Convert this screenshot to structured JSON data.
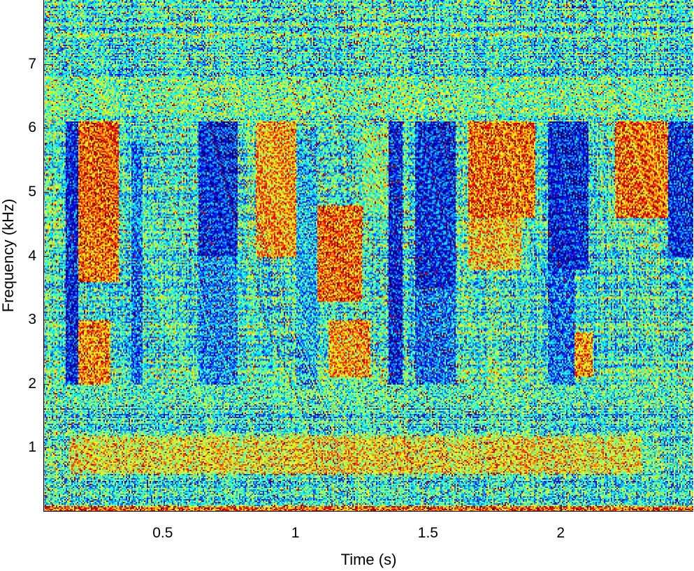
{
  "chart_data": {
    "type": "heatmap",
    "title": "",
    "xlabel": "Time (s)",
    "ylabel": "Frequency (kHz)",
    "xlim": [
      0.05,
      2.5
    ],
    "ylim": [
      0,
      8
    ],
    "x_ticks": [
      {
        "value": 0.5,
        "label": "0.5"
      },
      {
        "value": 1,
        "label": "1"
      },
      {
        "value": 1.5,
        "label": "1.5"
      },
      {
        "value": 2,
        "label": "2"
      }
    ],
    "y_ticks": [
      {
        "value": 1,
        "label": "1"
      },
      {
        "value": 2,
        "label": "2"
      },
      {
        "value": 3,
        "label": "3"
      },
      {
        "value": 4,
        "label": "4"
      },
      {
        "value": 5,
        "label": "5"
      },
      {
        "value": 6,
        "label": "6"
      },
      {
        "value": 7,
        "label": "7"
      }
    ],
    "colormap": "jet",
    "grid": false,
    "energy_regions": [
      {
        "t": [
          0.13,
          0.18
        ],
        "f": [
          2.0,
          6.1
        ],
        "level": 0.05
      },
      {
        "t": [
          0.18,
          0.33
        ],
        "f": [
          4.6,
          6.1
        ],
        "level": 0.92
      },
      {
        "t": [
          0.18,
          0.33
        ],
        "f": [
          3.6,
          4.6
        ],
        "level": 0.9
      },
      {
        "t": [
          0.18,
          0.3
        ],
        "f": [
          2.0,
          3.0
        ],
        "level": 0.85
      },
      {
        "t": [
          0.38,
          0.42
        ],
        "f": [
          2.0,
          5.8
        ],
        "level": 0.2
      },
      {
        "t": [
          0.63,
          0.78
        ],
        "f": [
          4.0,
          6.1
        ],
        "level": 0.05
      },
      {
        "t": [
          0.63,
          0.78
        ],
        "f": [
          2.0,
          4.0
        ],
        "level": 0.25
      },
      {
        "t": [
          0.85,
          1.0
        ],
        "f": [
          4.0,
          6.1
        ],
        "level": 0.8
      },
      {
        "t": [
          1.0,
          1.08
        ],
        "f": [
          2.0,
          6.0
        ],
        "level": 0.3
      },
      {
        "t": [
          1.08,
          1.25
        ],
        "f": [
          3.3,
          4.8
        ],
        "level": 0.88
      },
      {
        "t": [
          1.12,
          1.28
        ],
        "f": [
          2.1,
          3.0
        ],
        "level": 0.8
      },
      {
        "t": [
          1.25,
          1.35
        ],
        "f": [
          4.7,
          6.0
        ],
        "level": 0.55
      },
      {
        "t": [
          1.35,
          1.4
        ],
        "f": [
          2.0,
          6.1
        ],
        "level": 0.05
      },
      {
        "t": [
          1.45,
          1.6
        ],
        "f": [
          3.5,
          6.1
        ],
        "level": 0.05
      },
      {
        "t": [
          1.45,
          1.6
        ],
        "f": [
          2.0,
          3.5
        ],
        "level": 0.2
      },
      {
        "t": [
          1.65,
          1.9
        ],
        "f": [
          4.6,
          6.1
        ],
        "level": 0.9
      },
      {
        "t": [
          1.65,
          1.85
        ],
        "f": [
          3.8,
          4.6
        ],
        "level": 0.75
      },
      {
        "t": [
          1.95,
          2.1
        ],
        "f": [
          3.8,
          6.1
        ],
        "level": 0.05
      },
      {
        "t": [
          1.95,
          2.05
        ],
        "f": [
          2.0,
          3.8
        ],
        "level": 0.2
      },
      {
        "t": [
          2.05,
          2.12
        ],
        "f": [
          2.1,
          2.8
        ],
        "level": 0.85
      },
      {
        "t": [
          2.2,
          2.4
        ],
        "f": [
          4.6,
          6.1
        ],
        "level": 0.88
      },
      {
        "t": [
          2.4,
          2.5
        ],
        "f": [
          4.0,
          6.1
        ],
        "level": 0.08
      },
      {
        "t": [
          0.1,
          2.5
        ],
        "f": [
          1.7,
          2.0
        ],
        "level": 0.45
      },
      {
        "t": [
          0.05,
          2.5
        ],
        "f": [
          6.2,
          6.8
        ],
        "level": 0.5
      },
      {
        "t": [
          0.15,
          2.3
        ],
        "f": [
          0.6,
          1.2
        ],
        "level": 0.7
      },
      {
        "t": [
          0.05,
          2.5
        ],
        "f": [
          0.0,
          0.1
        ],
        "level": 0.9
      }
    ]
  }
}
